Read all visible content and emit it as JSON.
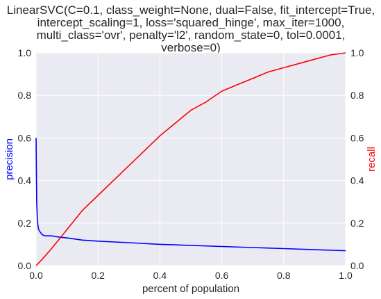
{
  "chart_data": {
    "type": "line",
    "title_lines": [
      "LinearSVC(C=0.1, class_weight=None, dual=False, fit_intercept=True,",
      "intercept_scaling=1, loss='squared_hinge', max_iter=1000,",
      "multi_class='ovr', penalty='l2', random_state=0, tol=0.0001,",
      "verbose=0)"
    ],
    "xlabel": "percent of population",
    "ylabel_left": "precision",
    "ylabel_right": "recall",
    "xlim": [
      0.0,
      1.0
    ],
    "ylim_left": [
      0.0,
      1.0
    ],
    "ylim_right": [
      0.0,
      1.0
    ],
    "x_ticks": [
      "0.0",
      "0.2",
      "0.4",
      "0.6",
      "0.8",
      "1.0"
    ],
    "y_ticks_left": [
      "0.0",
      "0.2",
      "0.4",
      "0.6",
      "0.8",
      "1.0"
    ],
    "y_ticks_right": [
      "0.0",
      "0.2",
      "0.4",
      "0.6",
      "0.8",
      "1.0"
    ],
    "grid": true,
    "colors": {
      "precision": "#0000ff",
      "recall": "#ff0000",
      "background": "#eaeaf2",
      "grid": "#ffffff",
      "text": "#262626"
    },
    "series": [
      {
        "name": "precision",
        "axis": "left",
        "x": [
          0.0,
          0.001,
          0.002,
          0.004,
          0.006,
          0.008,
          0.012,
          0.02,
          0.03,
          0.05,
          0.07,
          0.1,
          0.15,
          0.2,
          0.3,
          0.4,
          0.5,
          0.6,
          0.7,
          0.8,
          0.9,
          1.0
        ],
        "y": [
          0.6,
          0.45,
          0.3,
          0.22,
          0.19,
          0.17,
          0.16,
          0.145,
          0.14,
          0.14,
          0.135,
          0.13,
          0.12,
          0.115,
          0.108,
          0.1,
          0.095,
          0.09,
          0.085,
          0.08,
          0.075,
          0.07
        ]
      },
      {
        "name": "recall",
        "axis": "right",
        "x": [
          0.0,
          0.02,
          0.05,
          0.1,
          0.15,
          0.2,
          0.25,
          0.3,
          0.35,
          0.4,
          0.45,
          0.5,
          0.55,
          0.6,
          0.65,
          0.7,
          0.75,
          0.8,
          0.85,
          0.9,
          0.95,
          1.0
        ],
        "y": [
          0.0,
          0.03,
          0.08,
          0.17,
          0.26,
          0.33,
          0.4,
          0.47,
          0.54,
          0.61,
          0.67,
          0.73,
          0.77,
          0.82,
          0.85,
          0.88,
          0.91,
          0.93,
          0.95,
          0.97,
          0.99,
          1.0
        ]
      }
    ]
  }
}
